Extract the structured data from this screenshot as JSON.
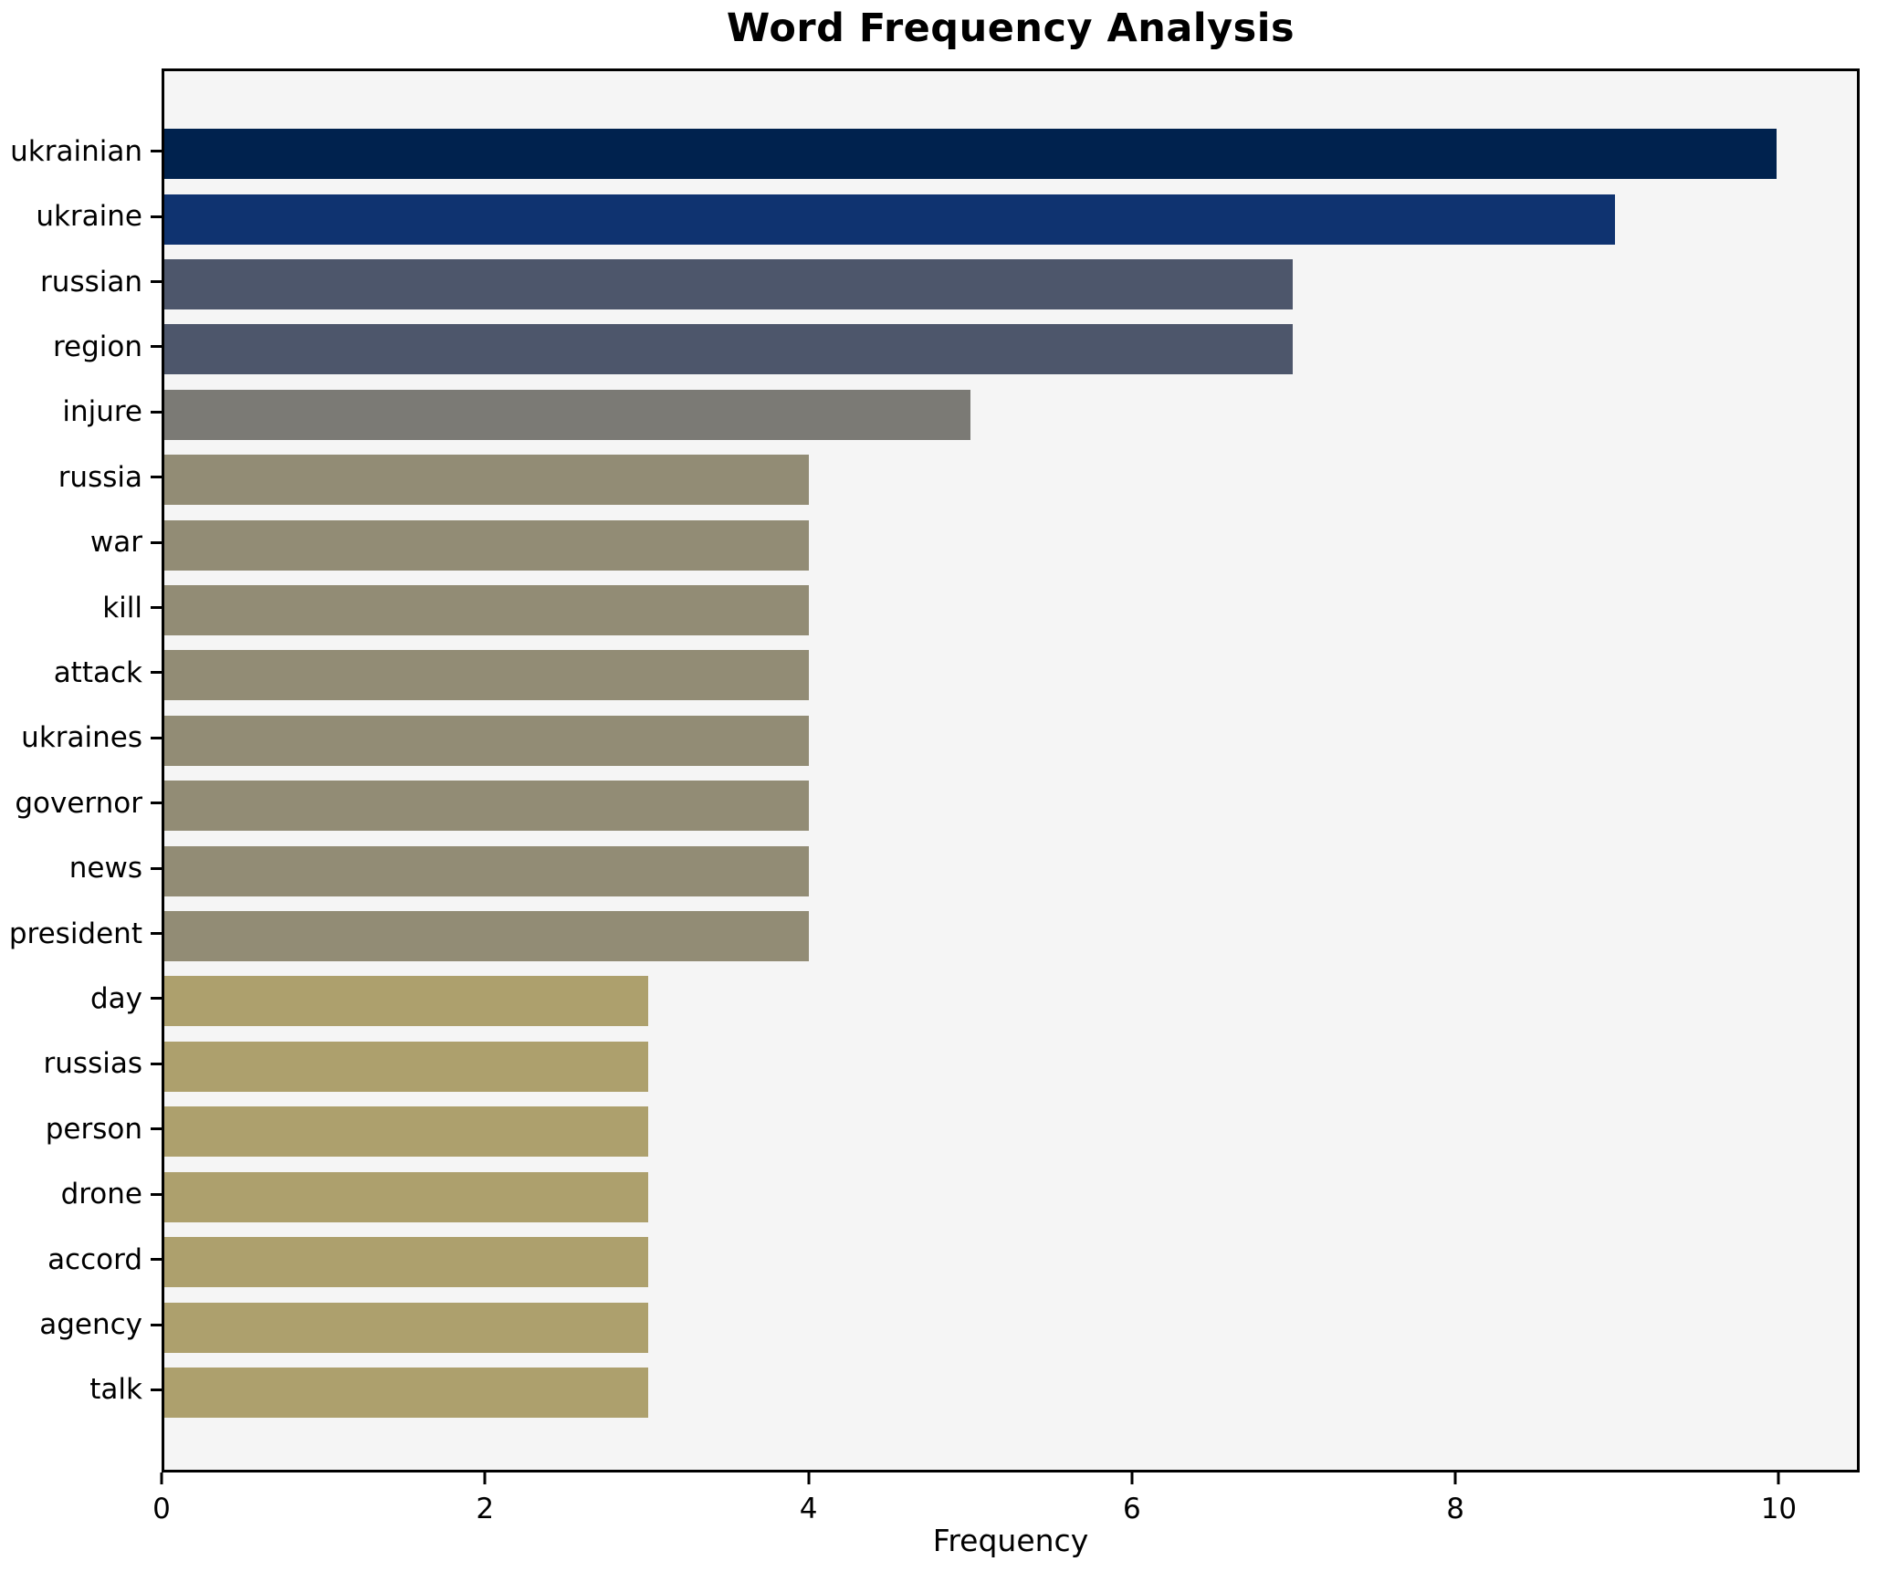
{
  "chart_data": {
    "type": "bar",
    "orientation": "horizontal",
    "title": "Word Frequency Analysis",
    "xlabel": "Frequency",
    "ylabel": "",
    "categories": [
      "ukrainian",
      "ukraine",
      "russian",
      "region",
      "injure",
      "russia",
      "war",
      "kill",
      "attack",
      "ukraines",
      "governor",
      "news",
      "president",
      "day",
      "russias",
      "person",
      "drone",
      "accord",
      "agency",
      "talk"
    ],
    "values": [
      10,
      9,
      7,
      7,
      5,
      4,
      4,
      4,
      4,
      4,
      4,
      4,
      4,
      3,
      3,
      3,
      3,
      3,
      3,
      3
    ],
    "bar_colors": [
      "#00224e",
      "#0f3370",
      "#4d566b",
      "#4d566b",
      "#7b7a75",
      "#928c75",
      "#928c75",
      "#928c75",
      "#928c75",
      "#928c75",
      "#928c75",
      "#928c75",
      "#928c75",
      "#ada06d",
      "#ada06d",
      "#ada06d",
      "#ada06d",
      "#ada06d",
      "#ada06d",
      "#ada06d"
    ],
    "xticks": [
      0,
      2,
      4,
      6,
      8,
      10
    ],
    "xlim": [
      0,
      10.5
    ],
    "grid": false,
    "legend": null,
    "plot_background": "#f5f5f5",
    "figure_background": "#ffffff",
    "spine_color": "#000000"
  }
}
